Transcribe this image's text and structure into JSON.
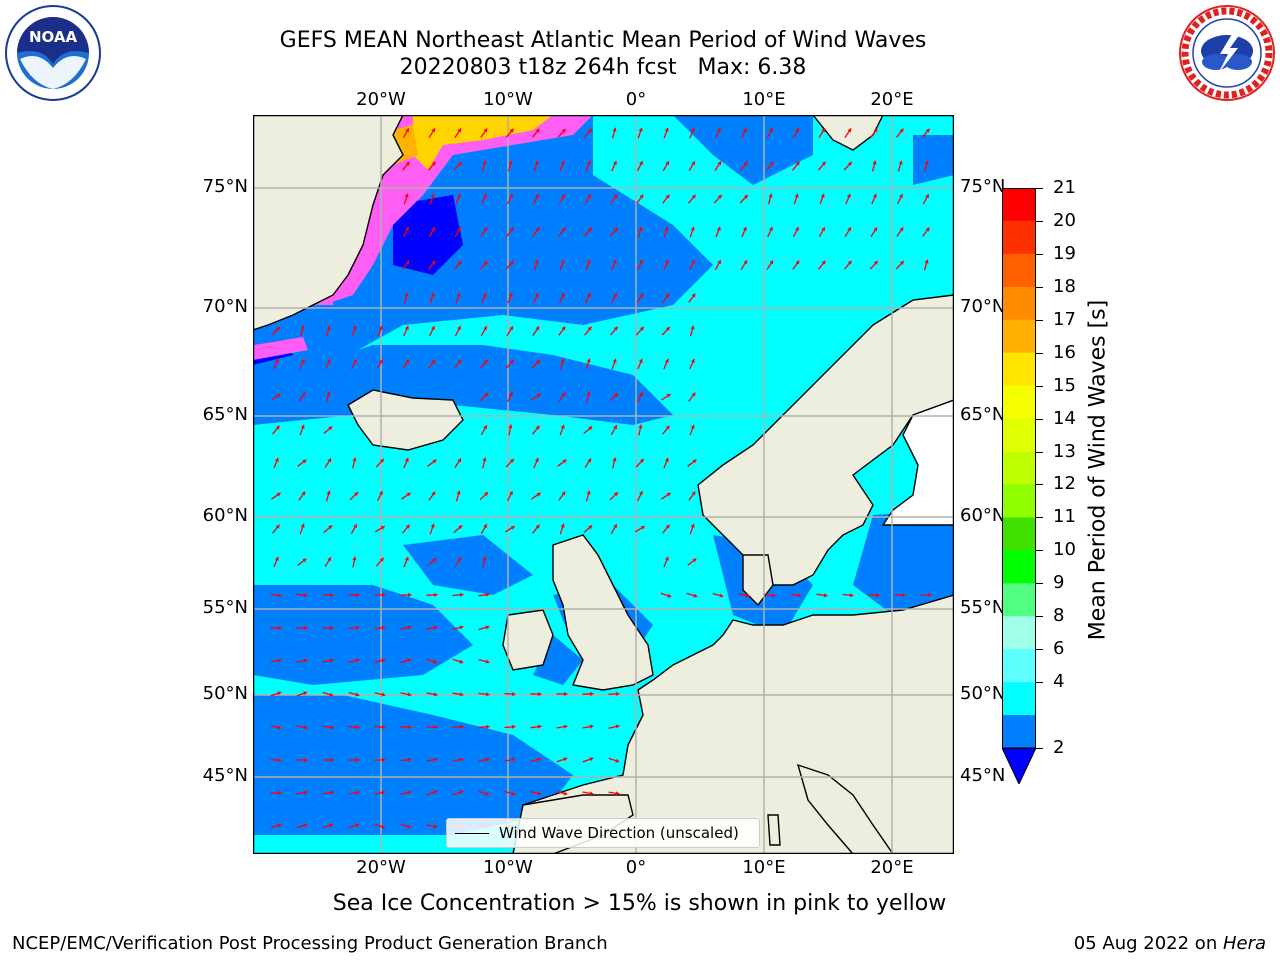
{
  "title": {
    "line1": "GEFS MEAN Northeast Atlantic Mean Period of Wind Waves",
    "line2": "20220803 t18z 264h fcst   Max: 6.38"
  },
  "logos": {
    "left": {
      "icon": "noaa-logo",
      "text": "NOAA",
      "ring_text": "NATIONAL OCEANIC AND ATMOSPHERIC ADMINISTRATION · U.S. DEPARTMENT OF COMMERCE"
    },
    "right": {
      "icon": "nws-logo",
      "ring_text": "NATIONAL WEATHER SERVICE"
    }
  },
  "map": {
    "lon_range": [
      -30,
      25
    ],
    "lat_range": [
      41,
      78
    ],
    "lon_ticks": [
      "20°W",
      "10°W",
      "0°",
      "10°E",
      "20°E"
    ],
    "lat_ticks": [
      "75°N",
      "70°N",
      "65°N",
      "60°N",
      "55°N",
      "50°N",
      "45°N"
    ],
    "colors": {
      "ocean_main": "#00ffff",
      "ocean_low": "#0080ff",
      "ocean_deep": "#0000ff",
      "land": "#eeeedf",
      "ice_pink": "#ff5ef5",
      "ice_yellow": "#ffd400",
      "arrows": "#ff0000",
      "grid": "#b0b0b0"
    },
    "legend": {
      "label": "Wind Wave Direction (unscaled)"
    }
  },
  "colorbar": {
    "label": "Mean Period of Wind Waves [s]",
    "ticks": [
      "21",
      "20",
      "19",
      "18",
      "17",
      "16",
      "15",
      "14",
      "13",
      "12",
      "11",
      "10",
      "9",
      "8",
      "6",
      "4",
      "2"
    ],
    "colors": [
      "#ff0000",
      "#ff3000",
      "#ff6000",
      "#ff8c00",
      "#ffb000",
      "#ffe600",
      "#f6ff00",
      "#e0ff00",
      "#c0ff00",
      "#90ff00",
      "#40e000",
      "#00ff00",
      "#50ff80",
      "#a0ffe8",
      "#60ffff",
      "#00ffff",
      "#0080ff"
    ],
    "extend_color": "#0000ff"
  },
  "subtitle": "Sea Ice Concentration > 15% is shown in pink to yellow",
  "footer": {
    "left": "NCEP/EMC/Verification Post Processing Product Generation Branch",
    "date": "05 Aug 2022 on ",
    "machine": "Hera"
  }
}
